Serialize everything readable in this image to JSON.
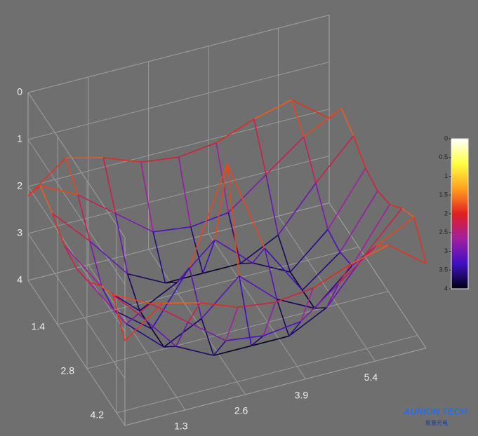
{
  "chart_data": {
    "type": "surface",
    "x": [
      0,
      0.8125,
      1.625,
      2.4375,
      3.25,
      4.0625,
      4.875,
      5.6875,
      6.5
    ],
    "y": [
      0,
      0.575,
      1.15,
      1.725,
      2.3,
      2.875,
      3.45,
      4.025,
      4.6
    ],
    "z": [
      [
        2.2,
        1.6,
        1.8,
        2.1,
        2.2,
        2.1,
        1.8,
        1.6,
        2.2
      ],
      [
        1.6,
        2.0,
        2.6,
        3.2,
        3.3,
        3.2,
        2.6,
        2.0,
        1.6
      ],
      [
        1.8,
        2.6,
        3.5,
        3.9,
        3.9,
        3.9,
        3.5,
        2.6,
        1.8
      ],
      [
        2.1,
        3.2,
        3.9,
        3.5,
        2.8,
        3.5,
        3.9,
        3.2,
        2.1
      ],
      [
        2.2,
        3.3,
        3.9,
        2.8,
        0.8,
        2.8,
        3.9,
        3.3,
        2.2
      ],
      [
        2.1,
        3.2,
        3.9,
        3.5,
        2.8,
        3.5,
        3.9,
        3.2,
        2.1
      ],
      [
        1.8,
        2.6,
        3.5,
        3.9,
        3.9,
        3.9,
        3.5,
        2.6,
        1.8
      ],
      [
        1.6,
        2.0,
        2.6,
        3.2,
        3.3,
        3.2,
        2.6,
        2.0,
        1.6
      ],
      [
        2.2,
        1.6,
        1.8,
        2.1,
        2.2,
        2.1,
        1.8,
        1.6,
        2.2
      ]
    ],
    "xlim": [
      0,
      6.5
    ],
    "ylim": [
      0,
      4.6
    ],
    "zlim": [
      0,
      4
    ],
    "z_reversed": true,
    "xticks": [
      1.3,
      2.6,
      3.9,
      5.4
    ],
    "yticks": [
      1.4,
      2.8,
      4.2
    ],
    "zticks": [
      0,
      1,
      2,
      3,
      4
    ],
    "grid": true,
    "colormap": [
      "#ffffff",
      "#ffff40",
      "#ffa020",
      "#e02020",
      "#a020a0",
      "#4010c0",
      "#000010"
    ],
    "clim": [
      0,
      4
    ],
    "cticks": [
      0,
      0.5,
      1,
      1.5,
      2,
      2.5,
      3,
      3.5,
      4
    ]
  },
  "watermark": {
    "text": "AUNION TECH",
    "subtext": "聚量光电"
  }
}
